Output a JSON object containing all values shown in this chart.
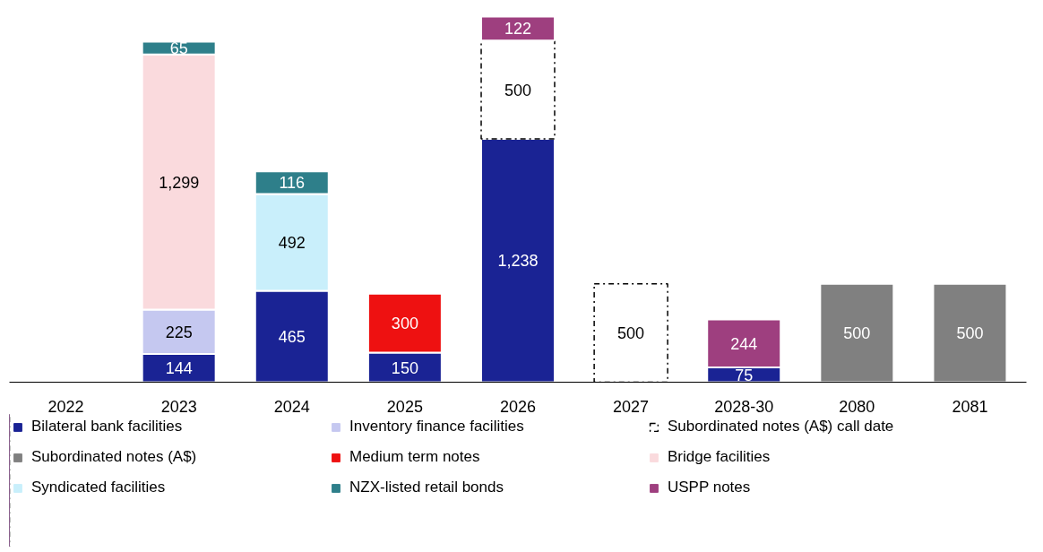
{
  "chart_data": {
    "type": "bar",
    "stacked": true,
    "data_labels": true,
    "legend": "bottom",
    "categories": [
      "2022",
      "2023",
      "2024",
      "2025",
      "2026",
      "2027",
      "2028-30",
      "2080",
      "2081"
    ],
    "series": [
      {
        "name": "Bilateral bank facilities",
        "color": "#1a2394",
        "values": [
          null,
          144,
          465,
          150,
          1238,
          null,
          75,
          null,
          null
        ],
        "value_labels": [
          null,
          "144",
          "465",
          "150",
          "1,238",
          null,
          "75",
          null,
          null
        ]
      },
      {
        "name": "Inventory finance facilities",
        "color": "#c5c8f0",
        "values": [
          null,
          225,
          null,
          null,
          null,
          null,
          null,
          null,
          null
        ]
      },
      {
        "name": "Subordinated notes (A$) call date",
        "color": "#000000",
        "line_style": "dashed",
        "values": [
          null,
          null,
          null,
          null,
          500,
          500,
          null,
          null,
          null
        ]
      },
      {
        "name": "Subordinated notes (A$)",
        "color": "#808080",
        "values": [
          null,
          null,
          null,
          null,
          null,
          null,
          null,
          500,
          500
        ]
      },
      {
        "name": "Medium term notes",
        "color": "#ee1111",
        "values": [
          null,
          null,
          null,
          300,
          null,
          null,
          null,
          null,
          null
        ]
      },
      {
        "name": "Bridge facilities",
        "color": "#fadadd",
        "values": [
          null,
          1299,
          null,
          null,
          null,
          null,
          null,
          null,
          null
        ],
        "value_labels": [
          null,
          "1,299",
          null,
          null,
          null,
          null,
          null,
          null,
          null
        ]
      },
      {
        "name": "Syndicated facilities",
        "color": "#c9effb",
        "values": [
          null,
          null,
          492,
          null,
          null,
          null,
          null,
          null,
          null
        ]
      },
      {
        "name": "NZX-listed retail bonds",
        "color": "#2e7f8a",
        "values": [
          null,
          65,
          116,
          null,
          null,
          null,
          null,
          null,
          null
        ]
      },
      {
        "name": "USPP notes",
        "color": "#9e3f7f",
        "values": [
          null,
          null,
          null,
          null,
          122,
          null,
          244,
          null,
          null
        ]
      }
    ]
  }
}
